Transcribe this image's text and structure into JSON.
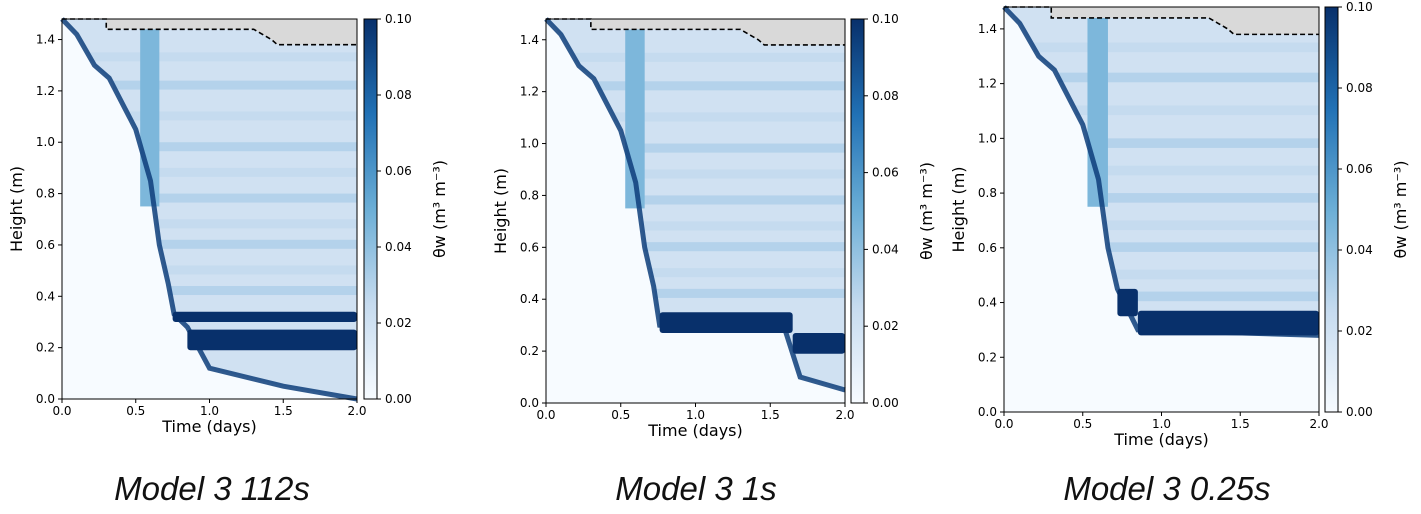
{
  "colors": {
    "cmap_low": "#f7fbff",
    "cmap_high": "#08306b",
    "overburden_fill": "#d9d9d9",
    "dashed_line": "#000000"
  },
  "chart_data": [
    {
      "type": "heatmap",
      "caption": "Model 3 112s",
      "xlabel": "Time (days)",
      "ylabel": "Height (m)",
      "xlim": [
        0.0,
        2.0
      ],
      "ylim": [
        0.0,
        1.48
      ],
      "xticks": [
        "0.0",
        "0.5",
        "1.0",
        "1.5",
        "2.0"
      ],
      "yticks": [
        "0.0",
        "0.2",
        "0.4",
        "0.6",
        "0.8",
        "1.0",
        "1.2",
        "1.4"
      ],
      "colorbar": {
        "label": "θw (m³ m⁻³)",
        "min": 0.0,
        "max": 0.1,
        "ticks": [
          "0.00",
          "0.02",
          "0.04",
          "0.06",
          "0.08",
          "0.10"
        ]
      },
      "surface_line": [
        [
          0,
          1.48
        ],
        [
          0.3,
          1.48
        ],
        [
          0.3,
          1.44
        ],
        [
          1.3,
          1.44
        ],
        [
          1.36,
          1.42
        ],
        [
          1.42,
          1.4
        ],
        [
          1.46,
          1.38
        ],
        [
          2.0,
          1.38
        ]
      ],
      "front_line": [
        [
          0.0,
          1.48
        ],
        [
          0.1,
          1.42
        ],
        [
          0.22,
          1.3
        ],
        [
          0.32,
          1.25
        ],
        [
          0.5,
          1.05
        ],
        [
          0.6,
          0.85
        ],
        [
          0.66,
          0.6
        ],
        [
          0.72,
          0.45
        ],
        [
          0.76,
          0.33
        ],
        [
          0.85,
          0.28
        ],
        [
          1.0,
          0.12
        ],
        [
          1.5,
          0.05
        ],
        [
          2.0,
          0.0
        ]
      ],
      "wet_layers": [
        {
          "x_start": 0.75,
          "x_end": 2.0,
          "y_low": 0.3,
          "y_high": 0.34,
          "theta": 0.1
        },
        {
          "x_start": 0.85,
          "x_end": 2.0,
          "y_low": 0.19,
          "y_high": 0.27,
          "theta": 0.1
        }
      ]
    },
    {
      "type": "heatmap",
      "caption": "Model 3 1s",
      "xlabel": "Time (days)",
      "ylabel": "Height (m)",
      "xlim": [
        0.0,
        2.0
      ],
      "ylim": [
        0.0,
        1.48
      ],
      "xticks": [
        "0.0",
        "0.5",
        "1.0",
        "1.5",
        "2.0"
      ],
      "yticks": [
        "0.0",
        "0.2",
        "0.4",
        "0.6",
        "0.8",
        "1.0",
        "1.2",
        "1.4"
      ],
      "colorbar": {
        "label": "θw (m³ m⁻³)",
        "min": 0.0,
        "max": 0.1,
        "ticks": [
          "0.00",
          "0.02",
          "0.04",
          "0.06",
          "0.08",
          "0.10"
        ]
      },
      "surface_line": [
        [
          0,
          1.48
        ],
        [
          0.3,
          1.48
        ],
        [
          0.3,
          1.44
        ],
        [
          1.3,
          1.44
        ],
        [
          1.36,
          1.42
        ],
        [
          1.42,
          1.4
        ],
        [
          1.46,
          1.38
        ],
        [
          2.0,
          1.38
        ]
      ],
      "front_line": [
        [
          0.0,
          1.48
        ],
        [
          0.1,
          1.42
        ],
        [
          0.22,
          1.3
        ],
        [
          0.32,
          1.25
        ],
        [
          0.5,
          1.05
        ],
        [
          0.6,
          0.85
        ],
        [
          0.66,
          0.6
        ],
        [
          0.72,
          0.45
        ],
        [
          0.76,
          0.3
        ],
        [
          1.6,
          0.28
        ],
        [
          1.7,
          0.1
        ],
        [
          2.0,
          0.05
        ]
      ],
      "wet_layers": [
        {
          "x_start": 0.76,
          "x_end": 1.65,
          "y_low": 0.27,
          "y_high": 0.35,
          "theta": 0.1
        },
        {
          "x_start": 1.65,
          "x_end": 2.0,
          "y_low": 0.19,
          "y_high": 0.27,
          "theta": 0.1
        }
      ]
    },
    {
      "type": "heatmap",
      "caption": "Model 3 0.25s",
      "xlabel": "Time (days)",
      "ylabel": "Height (m)",
      "xlim": [
        0.0,
        2.0
      ],
      "ylim": [
        0.0,
        1.48
      ],
      "xticks": [
        "0.0",
        "0.5",
        "1.0",
        "1.5",
        "2.0"
      ],
      "yticks": [
        "0.0",
        "0.2",
        "0.4",
        "0.6",
        "0.8",
        "1.0",
        "1.2",
        "1.4"
      ],
      "colorbar": {
        "label": "θw (m³ m⁻³)",
        "min": 0.0,
        "max": 0.1,
        "ticks": [
          "0.00",
          "0.02",
          "0.04",
          "0.06",
          "0.08",
          "0.10"
        ]
      },
      "surface_line": [
        [
          0,
          1.48
        ],
        [
          0.3,
          1.48
        ],
        [
          0.3,
          1.44
        ],
        [
          1.3,
          1.44
        ],
        [
          1.36,
          1.42
        ],
        [
          1.42,
          1.4
        ],
        [
          1.46,
          1.38
        ],
        [
          2.0,
          1.38
        ]
      ],
      "front_line": [
        [
          0.0,
          1.48
        ],
        [
          0.1,
          1.42
        ],
        [
          0.22,
          1.3
        ],
        [
          0.32,
          1.25
        ],
        [
          0.5,
          1.05
        ],
        [
          0.6,
          0.85
        ],
        [
          0.66,
          0.6
        ],
        [
          0.72,
          0.45
        ],
        [
          0.85,
          0.3
        ],
        [
          2.0,
          0.28
        ]
      ],
      "wet_layers": [
        {
          "x_start": 0.72,
          "x_end": 0.85,
          "y_low": 0.35,
          "y_high": 0.45,
          "theta": 0.1
        },
        {
          "x_start": 0.85,
          "x_end": 2.0,
          "y_low": 0.28,
          "y_high": 0.37,
          "theta": 0.1
        }
      ]
    }
  ]
}
